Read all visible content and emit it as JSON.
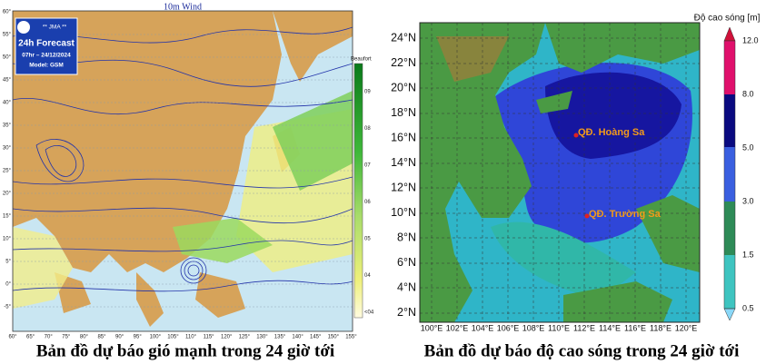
{
  "left_map": {
    "title": "10m Wind",
    "badge": [
      "** JMA **",
      "24h Forecast",
      "07hr – 24/12/2024",
      "Model: GSM"
    ],
    "colorbar_title": "Beaufort",
    "colorbar_labels": [
      "09",
      "08",
      "07",
      "06",
      "05",
      "04",
      "<04"
    ],
    "lat_labels": [
      "60°",
      "55°",
      "50°",
      "45°",
      "40°",
      "35°",
      "30°",
      "25°",
      "20°",
      "15°",
      "10°",
      "5°",
      "0°",
      "-5°"
    ],
    "lon_labels": [
      "60°",
      "65°",
      "70°",
      "75°",
      "80°",
      "85°",
      "90°",
      "95°",
      "100°",
      "105°",
      "110°",
      "115°",
      "120°",
      "125°",
      "130°",
      "135°",
      "140°",
      "145°",
      "150°",
      "155°"
    ],
    "caption": "Bản đồ dự báo gió mạnh trong 24 giờ tới"
  },
  "right_map": {
    "colorbar_title": "Độ cao sóng [m]",
    "colorbar_labels": [
      "12.0",
      "8.0",
      "5.0",
      "3.0",
      "1.5",
      "0.5"
    ],
    "lat_labels": [
      "24°N",
      "22°N",
      "20°N",
      "18°N",
      "16°N",
      "14°N",
      "12°N",
      "10°N",
      "8°N",
      "6°N",
      "4°N",
      "2°N"
    ],
    "lon_labels": [
      "100°E",
      "102°E",
      "104°E",
      "106°E",
      "108°E",
      "110°E",
      "112°E",
      "114°E",
      "116°E",
      "118°E",
      "120°E"
    ],
    "annotations": [
      "QĐ. Hoàng Sa",
      "QĐ. Trường Sa"
    ],
    "caption": "Bản đồ dự báo độ cao sóng trong 24 giờ tới"
  }
}
